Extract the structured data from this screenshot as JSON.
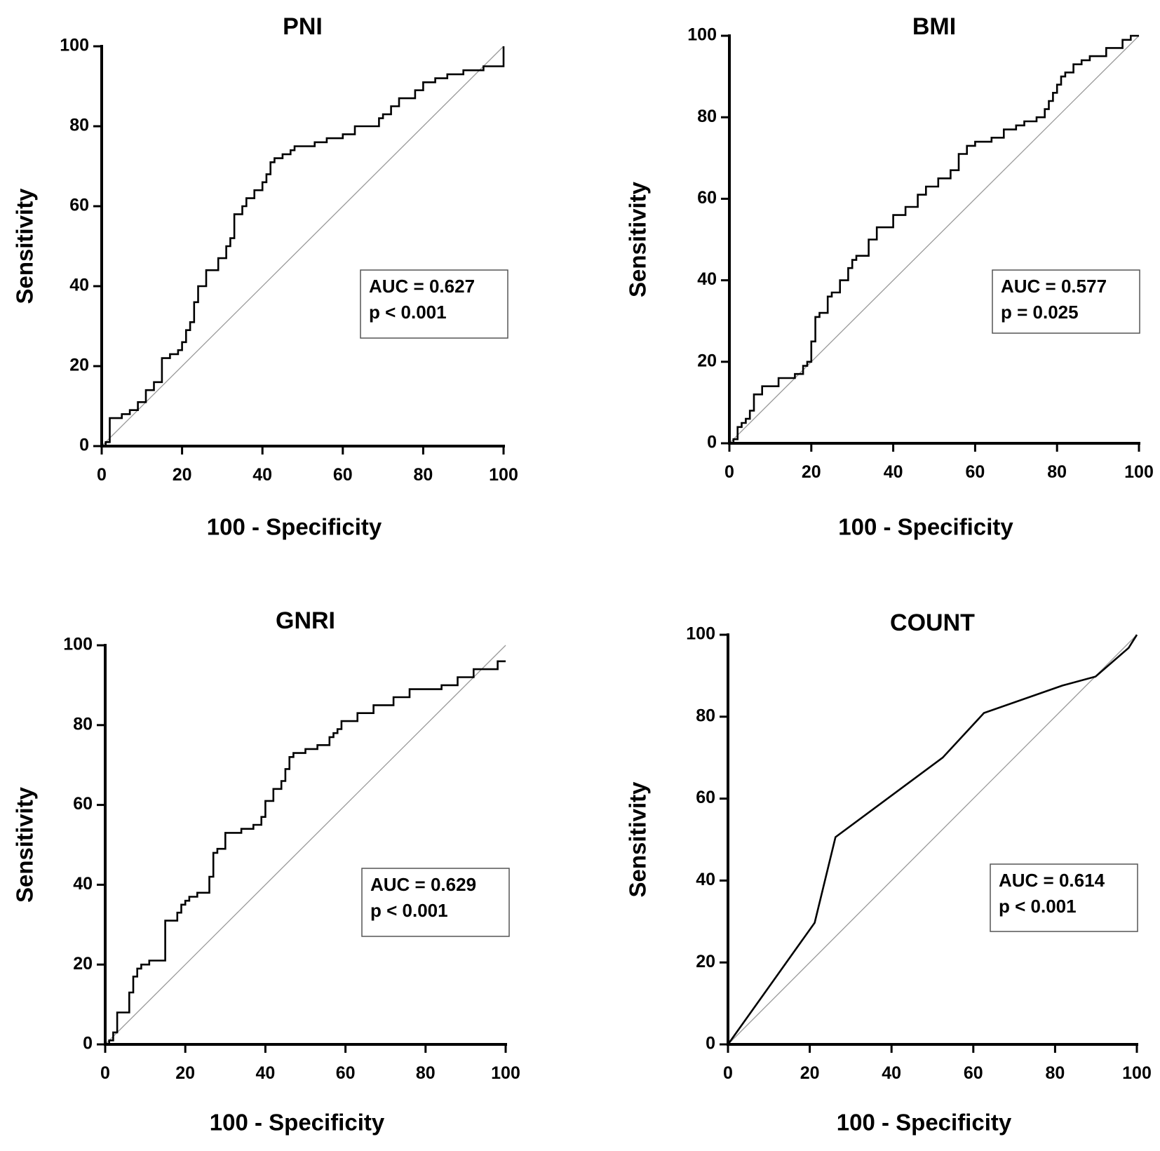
{
  "chart_data": [
    {
      "type": "line",
      "title": "PNI",
      "xlabel": "100 - Specificity",
      "ylabel": "Sensitivity",
      "xlim": [
        0,
        100
      ],
      "ylim": [
        0,
        100
      ],
      "xticks": [
        "0",
        "20",
        "40",
        "60",
        "80",
        "100"
      ],
      "yticks": [
        "0",
        "20",
        "40",
        "60",
        "80",
        "100"
      ],
      "annotation": [
        "AUC = 0.627",
        "p < 0.001"
      ],
      "auc": 0.627,
      "series": [
        {
          "name": "ROC",
          "x": [
            0,
            1,
            1,
            2,
            2,
            5,
            5,
            7,
            7,
            9,
            9,
            11,
            11,
            13,
            13,
            15,
            15,
            17,
            17,
            19,
            19,
            20,
            20,
            21,
            21,
            22,
            22,
            23,
            23,
            24,
            24,
            26,
            26,
            29,
            29,
            31,
            31,
            32,
            32,
            33,
            33,
            35,
            35,
            36,
            36,
            38,
            38,
            40,
            40,
            41,
            41,
            42,
            42,
            43,
            43,
            45,
            45,
            47,
            47,
            48,
            48,
            53,
            53,
            56,
            56,
            60,
            60,
            63,
            63,
            69,
            69,
            70,
            70,
            72,
            72,
            74,
            74,
            75,
            75,
            78,
            78,
            80,
            80,
            83,
            83,
            86,
            86,
            90,
            90,
            95,
            95,
            100,
            100
          ],
          "y": [
            0,
            0,
            1,
            1,
            7,
            7,
            8,
            8,
            9,
            9,
            11,
            11,
            14,
            14,
            16,
            16,
            22,
            22,
            23,
            23,
            24,
            24,
            26,
            26,
            29,
            29,
            31,
            31,
            36,
            36,
            40,
            40,
            44,
            44,
            47,
            47,
            50,
            50,
            52,
            52,
            58,
            58,
            60,
            60,
            62,
            62,
            64,
            64,
            66,
            66,
            68,
            68,
            71,
            71,
            72,
            72,
            73,
            73,
            74,
            74,
            75,
            75,
            76,
            76,
            77,
            77,
            78,
            78,
            80,
            80,
            82,
            82,
            83,
            83,
            85,
            85,
            87,
            87,
            87,
            87,
            89,
            89,
            91,
            91,
            92,
            92,
            93,
            93,
            94,
            94,
            95,
            95,
            100
          ]
        },
        {
          "name": "Reference",
          "x": [
            0,
            100
          ],
          "y": [
            0,
            100
          ]
        }
      ]
    },
    {
      "type": "line",
      "title": "BMI",
      "xlabel": "100 - Specificity",
      "ylabel": "Sensitivity",
      "xlim": [
        0,
        100
      ],
      "ylim": [
        0,
        100
      ],
      "xticks": [
        "0",
        "20",
        "40",
        "60",
        "80",
        "100"
      ],
      "yticks": [
        "0",
        "20",
        "40",
        "60",
        "80",
        "100"
      ],
      "annotation": [
        "AUC = 0.577",
        "p = 0.025"
      ],
      "auc": 0.577,
      "series": [
        {
          "name": "ROC",
          "x": [
            0,
            1,
            1,
            2,
            2,
            3,
            3,
            4,
            4,
            5,
            5,
            6,
            6,
            8,
            8,
            12,
            12,
            16,
            16,
            18,
            18,
            19,
            19,
            20,
            20,
            21,
            21,
            22,
            22,
            24,
            24,
            25,
            25,
            27,
            27,
            29,
            29,
            30,
            30,
            31,
            31,
            34,
            34,
            36,
            36,
            40,
            40,
            43,
            43,
            46,
            46,
            48,
            48,
            51,
            51,
            54,
            54,
            56,
            56,
            58,
            58,
            60,
            60,
            64,
            64,
            67,
            67,
            70,
            70,
            72,
            72,
            75,
            75,
            77,
            77,
            78,
            78,
            79,
            79,
            80,
            80,
            81,
            81,
            82,
            82,
            84,
            84,
            86,
            86,
            88,
            88,
            92,
            92,
            96,
            96,
            98,
            98,
            100
          ],
          "y": [
            0,
            0,
            1,
            1,
            4,
            4,
            5,
            5,
            6,
            6,
            8,
            8,
            12,
            12,
            14,
            14,
            16,
            16,
            17,
            17,
            19,
            19,
            20,
            20,
            25,
            25,
            31,
            31,
            32,
            32,
            36,
            36,
            37,
            37,
            40,
            40,
            43,
            43,
            45,
            45,
            46,
            46,
            50,
            50,
            53,
            53,
            56,
            56,
            58,
            58,
            61,
            61,
            63,
            63,
            65,
            65,
            67,
            67,
            71,
            71,
            73,
            73,
            74,
            74,
            75,
            75,
            77,
            77,
            78,
            78,
            79,
            79,
            80,
            80,
            82,
            82,
            84,
            84,
            86,
            86,
            88,
            88,
            90,
            90,
            91,
            91,
            93,
            93,
            94,
            94,
            95,
            95,
            97,
            97,
            99,
            99,
            100,
            100
          ]
        },
        {
          "name": "Reference",
          "x": [
            0,
            100
          ],
          "y": [
            0,
            100
          ]
        }
      ]
    },
    {
      "type": "line",
      "title": "GNRI",
      "xlabel": "100 - Specificity",
      "ylabel": "Sensitivity",
      "xlim": [
        0,
        100
      ],
      "ylim": [
        0,
        100
      ],
      "xticks": [
        "0",
        "20",
        "40",
        "60",
        "80",
        "100"
      ],
      "yticks": [
        "0",
        "20",
        "40",
        "60",
        "80",
        "100"
      ],
      "annotation": [
        "AUC = 0.629",
        "p < 0.001"
      ],
      "auc": 0.629,
      "series": [
        {
          "name": "ROC",
          "x": [
            0,
            1,
            1,
            2,
            2,
            3,
            3,
            4,
            4,
            6,
            6,
            7,
            7,
            8,
            8,
            9,
            9,
            11,
            11,
            15,
            15,
            18,
            18,
            19,
            19,
            20,
            20,
            21,
            21,
            23,
            23,
            26,
            26,
            27,
            27,
            28,
            28,
            30,
            30,
            34,
            34,
            37,
            37,
            39,
            39,
            40,
            40,
            42,
            42,
            44,
            44,
            45,
            45,
            46,
            46,
            47,
            47,
            50,
            50,
            53,
            53,
            56,
            56,
            57,
            57,
            58,
            58,
            59,
            59,
            63,
            63,
            67,
            67,
            72,
            72,
            76,
            76,
            84,
            84,
            88,
            88,
            92,
            92,
            98,
            98,
            100
          ],
          "y": [
            0,
            0,
            1,
            1,
            3,
            3,
            8,
            8,
            8,
            8,
            13,
            13,
            17,
            17,
            19,
            19,
            20,
            20,
            21,
            21,
            31,
            31,
            33,
            33,
            35,
            35,
            36,
            36,
            37,
            37,
            38,
            38,
            42,
            42,
            48,
            48,
            49,
            49,
            53,
            53,
            54,
            54,
            55,
            55,
            57,
            57,
            61,
            61,
            64,
            64,
            66,
            66,
            69,
            69,
            72,
            72,
            73,
            73,
            74,
            74,
            75,
            75,
            77,
            77,
            78,
            78,
            79,
            79,
            81,
            81,
            83,
            83,
            85,
            85,
            87,
            87,
            89,
            89,
            90,
            90,
            92,
            92,
            94,
            94,
            96,
            96
          ]
        },
        {
          "name": "Reference",
          "x": [
            0,
            100
          ],
          "y": [
            0,
            100
          ]
        }
      ]
    },
    {
      "type": "line",
      "title": "COUNT",
      "xlabel": "100 - Specificity",
      "ylabel": "Sensitivity",
      "xlim": [
        0,
        100
      ],
      "ylim": [
        0,
        100
      ],
      "xticks": [
        "0",
        "20",
        "40",
        "60",
        "80",
        "100"
      ],
      "yticks": [
        "0",
        "20",
        "40",
        "60",
        "80",
        "100"
      ],
      "annotation": [
        "AUC = 0.614",
        "p < 0.001"
      ],
      "auc": 0.614,
      "series": [
        {
          "name": "ROC",
          "x": [
            0,
            21.2,
            26.3,
            52.5,
            62.6,
            81.8,
            89.9,
            98.0,
            100
          ],
          "y": [
            0,
            29.7,
            50.6,
            70.0,
            80.9,
            87.6,
            89.8,
            96.8,
            100
          ]
        },
        {
          "name": "Reference",
          "x": [
            0,
            100
          ],
          "y": [
            0,
            100
          ]
        }
      ]
    }
  ]
}
